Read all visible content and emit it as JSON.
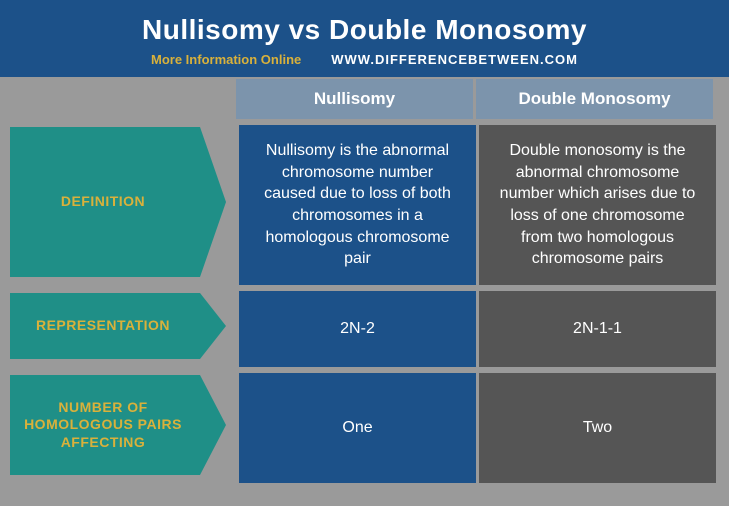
{
  "header": {
    "title": "Nullisomy vs Double Monosomy",
    "more_info": "More Information Online",
    "site": "WWW.DIFFERENCEBETWEEN.COM"
  },
  "columns": {
    "a": "Nullisomy",
    "b": "Double Monosomy"
  },
  "rows": [
    {
      "label": "DEFINITION",
      "a": "Nullisomy is the abnormal chromosome number caused due to loss of both chromosomes in a homologous chromosome pair",
      "b": "Double monosomy is the abnormal chromosome number which arises due to loss of one chromosome from two homologous chromosome pairs"
    },
    {
      "label": "REPRESENTATION",
      "a": "2N-2",
      "b": "2N-1-1"
    },
    {
      "label": "NUMBER OF HOMOLOGOUS PAIRS AFFECTING",
      "a": "One",
      "b": "Two"
    }
  ],
  "colors": {
    "header_bg": "#1c5189",
    "arrow_bg": "#1f8f87",
    "arrow_text": "#d9b13b",
    "col_a_bg": "#1c5189",
    "col_b_bg": "#555555",
    "colhead_bg": "#7c94ac",
    "page_bg": "#9a9a9a"
  }
}
